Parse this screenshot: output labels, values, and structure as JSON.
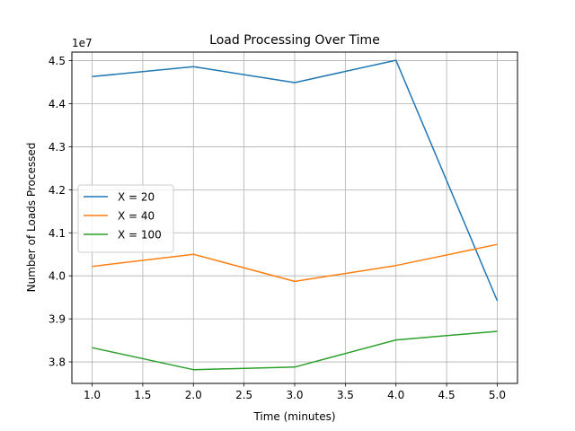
{
  "chart_data": {
    "type": "line",
    "title": "Load Processing Over Time",
    "xlabel": "Time (minutes)",
    "ylabel": "Number of Loads Processed",
    "y_offset_label": "1e7",
    "x_ticks": [
      "1.0",
      "1.5",
      "2.0",
      "2.5",
      "3.0",
      "3.5",
      "4.0",
      "4.5",
      "5.0"
    ],
    "y_ticks": [
      "3.8",
      "3.9",
      "4.0",
      "4.1",
      "4.2",
      "4.3",
      "4.4",
      "4.5"
    ],
    "xlim": [
      0.8,
      5.2
    ],
    "ylim": [
      37.5,
      45.2
    ],
    "grid": true,
    "legend_position": "center-left",
    "x": [
      1.0,
      2.0,
      3.0,
      4.0,
      5.0
    ],
    "series": [
      {
        "name": "X = 20",
        "color": "#1f77b4",
        "values": [
          44.63,
          44.86,
          44.49,
          45.01,
          39.42
        ]
      },
      {
        "name": "X = 40",
        "color": "#ff7f0e",
        "values": [
          40.22,
          40.5,
          39.87,
          40.24,
          40.73
        ]
      },
      {
        "name": "X = 100",
        "color": "#2ca02c",
        "values": [
          38.33,
          37.82,
          37.88,
          38.51,
          38.71
        ]
      }
    ]
  }
}
